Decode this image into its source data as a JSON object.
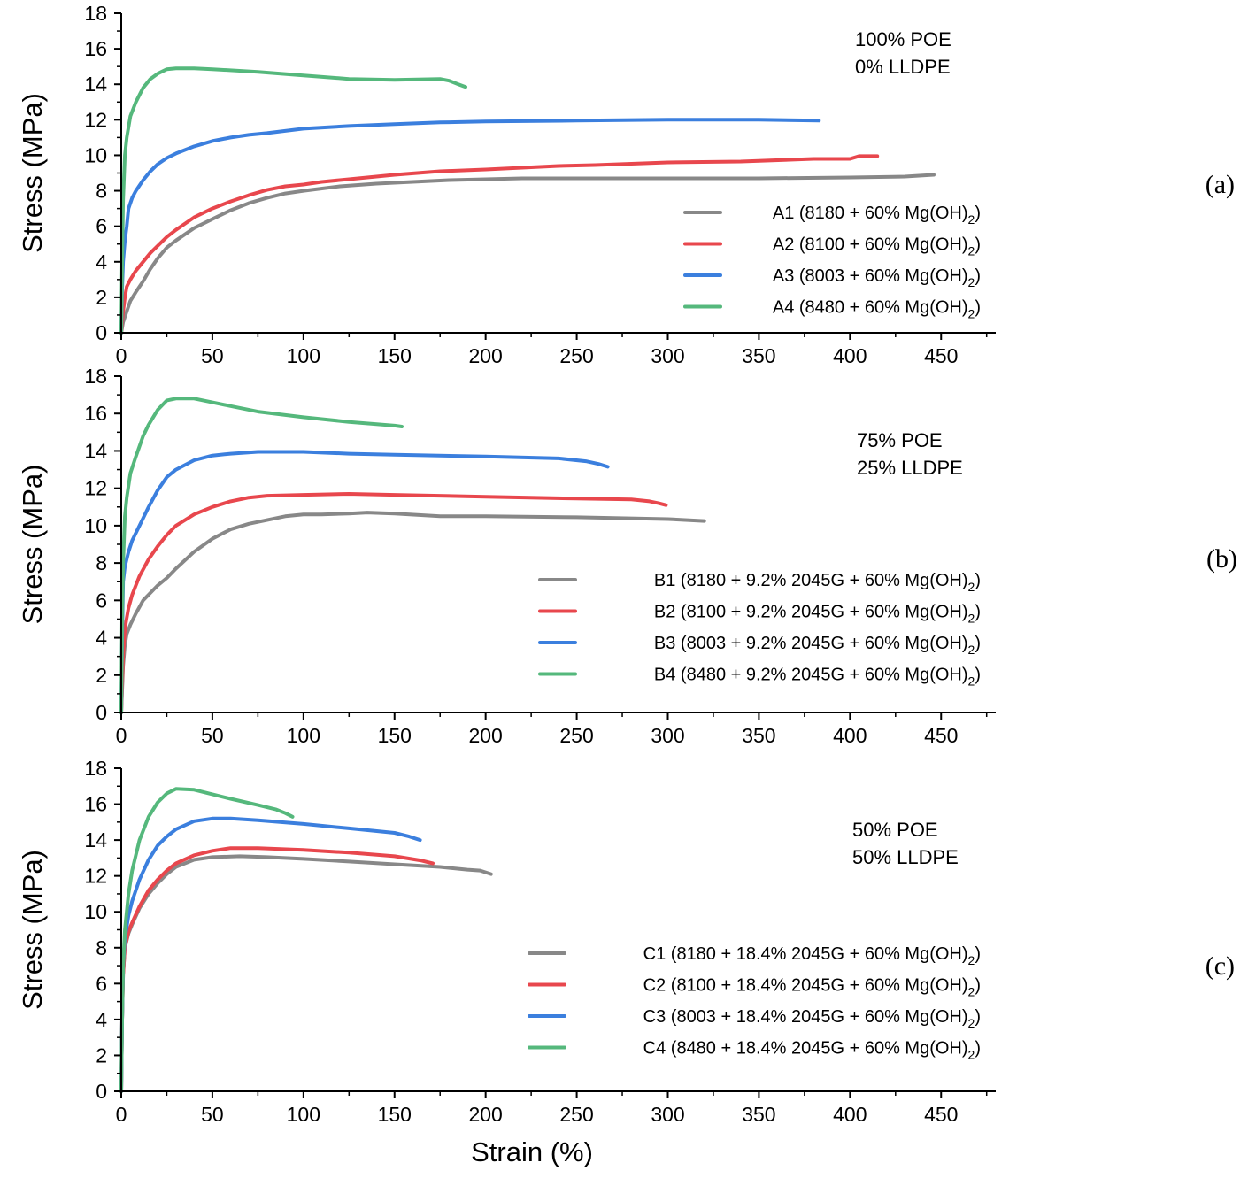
{
  "chart_data": [
    {
      "type": "line",
      "panel_label": "(a)",
      "ylabel": "Stress (MPa)",
      "xlabel": "",
      "xlim": [
        0,
        480
      ],
      "ylim": [
        0,
        18
      ],
      "xticks": [
        0,
        50,
        100,
        150,
        200,
        250,
        300,
        350,
        400,
        450
      ],
      "yticks": [
        0,
        2,
        4,
        6,
        8,
        10,
        12,
        14,
        16,
        18
      ],
      "annotation": [
        "100% POE",
        "0% LLDPE"
      ],
      "legend_position": "bottom-right",
      "series": [
        {
          "name": "A1 (8180 + 60% Mg(OH)",
          "name_sub": "2",
          "name_end": ")",
          "color": "#888888",
          "x": [
            0,
            1,
            3,
            5,
            8,
            12,
            16,
            20,
            25,
            30,
            40,
            50,
            60,
            70,
            80,
            90,
            100,
            120,
            140,
            160,
            180,
            200,
            220,
            250,
            300,
            350,
            400,
            430,
            446
          ],
          "y": [
            0,
            0.6,
            1.2,
            1.8,
            2.3,
            2.9,
            3.6,
            4.2,
            4.8,
            5.2,
            5.9,
            6.4,
            6.9,
            7.3,
            7.6,
            7.85,
            8.0,
            8.25,
            8.4,
            8.5,
            8.6,
            8.65,
            8.7,
            8.7,
            8.7,
            8.7,
            8.75,
            8.8,
            8.9
          ]
        },
        {
          "name": "A2 (8100 + 60% Mg(OH)",
          "name_sub": "2",
          "name_end": ")",
          "color": "#e8474d",
          "x": [
            0,
            1,
            2,
            3,
            5,
            8,
            12,
            16,
            20,
            25,
            30,
            40,
            50,
            60,
            70,
            80,
            90,
            100,
            110,
            125,
            150,
            175,
            200,
            240,
            260,
            300,
            340,
            380,
            400,
            405,
            415
          ],
          "y": [
            0,
            1.2,
            2.0,
            2.6,
            3.0,
            3.5,
            4.0,
            4.5,
            4.9,
            5.4,
            5.8,
            6.5,
            7.0,
            7.4,
            7.75,
            8.05,
            8.25,
            8.35,
            8.5,
            8.65,
            8.9,
            9.1,
            9.2,
            9.4,
            9.45,
            9.6,
            9.65,
            9.8,
            9.8,
            9.95,
            9.95
          ]
        },
        {
          "name": "A3 (8003 + 60% Mg(OH)",
          "name_sub": "2",
          "name_end": ")",
          "color": "#3b7fde",
          "x": [
            0,
            0.5,
            1,
            2,
            3,
            4,
            6,
            8,
            12,
            16,
            20,
            25,
            30,
            40,
            50,
            60,
            70,
            80,
            100,
            125,
            150,
            175,
            200,
            250,
            300,
            350,
            383
          ],
          "y": [
            0,
            2.5,
            4.0,
            5.2,
            6.0,
            7.0,
            7.6,
            8.0,
            8.6,
            9.1,
            9.5,
            9.85,
            10.1,
            10.5,
            10.8,
            11.0,
            11.15,
            11.25,
            11.5,
            11.65,
            11.75,
            11.85,
            11.9,
            11.95,
            12.0,
            12.0,
            11.95
          ]
        },
        {
          "name": "A4 (8480 + 60% Mg(OH)",
          "name_sub": "2",
          "name_end": ")",
          "color": "#55b87c",
          "x": [
            0,
            0.5,
            1,
            2,
            3,
            5,
            8,
            12,
            16,
            20,
            25,
            30,
            40,
            50,
            75,
            100,
            125,
            150,
            175,
            180,
            185,
            189
          ],
          "y": [
            0,
            4.0,
            7.5,
            10.0,
            11.0,
            12.2,
            13.0,
            13.8,
            14.3,
            14.6,
            14.85,
            14.9,
            14.9,
            14.85,
            14.7,
            14.5,
            14.3,
            14.25,
            14.3,
            14.2,
            14.0,
            13.85
          ]
        }
      ]
    },
    {
      "type": "line",
      "panel_label": "(b)",
      "ylabel": "Stress (MPa)",
      "xlabel": "",
      "xlim": [
        0,
        480
      ],
      "ylim": [
        0,
        18
      ],
      "xticks": [
        0,
        50,
        100,
        150,
        200,
        250,
        300,
        350,
        400,
        450
      ],
      "yticks": [
        0,
        2,
        4,
        6,
        8,
        10,
        12,
        14,
        16,
        18
      ],
      "annotation": [
        "75% POE",
        "25% LLDPE"
      ],
      "legend_position": "bottom-right",
      "series": [
        {
          "name": "B1 (8180 + 9.2% 2045G + 60% Mg(OH)",
          "name_sub": "2",
          "name_end": ")",
          "color": "#888888",
          "x": [
            0,
            1,
            2,
            3,
            5,
            8,
            12,
            16,
            20,
            25,
            30,
            40,
            50,
            60,
            70,
            80,
            90,
            100,
            110,
            125,
            135,
            150,
            175,
            200,
            250,
            300,
            320
          ],
          "y": [
            0,
            2.5,
            3.6,
            4.2,
            4.7,
            5.3,
            6.0,
            6.4,
            6.8,
            7.2,
            7.7,
            8.6,
            9.3,
            9.8,
            10.1,
            10.3,
            10.5,
            10.6,
            10.6,
            10.65,
            10.7,
            10.65,
            10.5,
            10.5,
            10.45,
            10.35,
            10.25
          ]
        },
        {
          "name": "B2 (8100 + 9.2% 2045G + 60% Mg(OH)",
          "name_sub": "2",
          "name_end": ")",
          "color": "#e8474d",
          "x": [
            0,
            1,
            2,
            4,
            6,
            10,
            15,
            20,
            25,
            30,
            40,
            50,
            60,
            70,
            80,
            100,
            125,
            150,
            200,
            250,
            280,
            290,
            295,
            299
          ],
          "y": [
            0,
            3.0,
            4.5,
            5.6,
            6.3,
            7.3,
            8.2,
            8.9,
            9.5,
            10.0,
            10.6,
            11.0,
            11.3,
            11.5,
            11.6,
            11.65,
            11.7,
            11.65,
            11.55,
            11.45,
            11.4,
            11.3,
            11.2,
            11.1
          ]
        },
        {
          "name": "B3 (8003 + 9.2% 2045G + 60% Mg(OH)",
          "name_sub": "2",
          "name_end": ")",
          "color": "#3b7fde",
          "x": [
            0,
            0.5,
            1,
            2,
            4,
            6,
            10,
            15,
            20,
            25,
            30,
            40,
            50,
            60,
            75,
            100,
            125,
            150,
            200,
            240,
            255,
            262,
            267
          ],
          "y": [
            0,
            4.0,
            7.0,
            7.8,
            8.6,
            9.2,
            10.0,
            11.0,
            11.9,
            12.6,
            13.0,
            13.5,
            13.75,
            13.85,
            13.95,
            13.95,
            13.85,
            13.8,
            13.7,
            13.6,
            13.45,
            13.3,
            13.15
          ]
        },
        {
          "name": "B4 (8480 + 9.2% 2045G + 60% Mg(OH)",
          "name_sub": "2",
          "name_end": ")",
          "color": "#55b87c",
          "x": [
            0,
            0.5,
            1,
            2,
            3,
            5,
            8,
            12,
            15,
            20,
            25,
            30,
            40,
            50,
            60,
            75,
            100,
            125,
            150,
            154
          ],
          "y": [
            0,
            5.0,
            8.0,
            10.5,
            11.5,
            12.8,
            13.7,
            14.8,
            15.4,
            16.2,
            16.7,
            16.8,
            16.8,
            16.6,
            16.4,
            16.1,
            15.8,
            15.55,
            15.35,
            15.3
          ]
        }
      ]
    },
    {
      "type": "line",
      "panel_label": "(c)",
      "ylabel": "Stress (MPa)",
      "xlabel": "Strain (%)",
      "xlim": [
        0,
        480
      ],
      "ylim": [
        0,
        18
      ],
      "xticks": [
        0,
        50,
        100,
        150,
        200,
        250,
        300,
        350,
        400,
        450
      ],
      "yticks": [
        0,
        2,
        4,
        6,
        8,
        10,
        12,
        14,
        16,
        18
      ],
      "annotation": [
        "50% POE",
        "50% LLDPE"
      ],
      "legend_position": "bottom-right",
      "series": [
        {
          "name": "C1 (8180 + 18.4% 2045G + 60% Mg(OH)",
          "name_sub": "2",
          "name_end": ")",
          "color": "#888888",
          "x": [
            0,
            0.5,
            1,
            2,
            4,
            6,
            10,
            15,
            20,
            25,
            30,
            40,
            50,
            65,
            80,
            100,
            125,
            150,
            175,
            190,
            197,
            200,
            203
          ],
          "y": [
            0,
            4.0,
            6.5,
            8.0,
            8.8,
            9.3,
            10.2,
            11.0,
            11.6,
            12.1,
            12.5,
            12.9,
            13.05,
            13.1,
            13.05,
            12.95,
            12.8,
            12.65,
            12.5,
            12.35,
            12.3,
            12.2,
            12.1
          ]
        },
        {
          "name": "C2 (8100 + 18.4% 2045G + 60% Mg(OH)",
          "name_sub": "2",
          "name_end": ")",
          "color": "#e8474d",
          "x": [
            0,
            0.5,
            1,
            2,
            4,
            6,
            10,
            15,
            20,
            25,
            30,
            40,
            50,
            60,
            75,
            100,
            125,
            150,
            165,
            171
          ],
          "y": [
            0,
            4.0,
            6.5,
            8.0,
            8.9,
            9.4,
            10.3,
            11.2,
            11.8,
            12.3,
            12.7,
            13.15,
            13.4,
            13.55,
            13.55,
            13.45,
            13.3,
            13.1,
            12.85,
            12.7
          ]
        },
        {
          "name": "C3 (8003 + 18.4% 2045G + 60% Mg(OH)",
          "name_sub": "2",
          "name_end": ")",
          "color": "#3b7fde",
          "x": [
            0,
            0.5,
            1,
            2,
            4,
            6,
            10,
            15,
            20,
            25,
            30,
            40,
            50,
            60,
            75,
            100,
            125,
            150,
            158,
            164
          ],
          "y": [
            0,
            4.0,
            7.0,
            8.5,
            9.8,
            10.6,
            11.8,
            12.9,
            13.7,
            14.2,
            14.6,
            15.05,
            15.2,
            15.2,
            15.1,
            14.9,
            14.65,
            14.4,
            14.2,
            14.0
          ]
        },
        {
          "name": "C4 (8480 + 18.4% 2045G + 60% Mg(OH)",
          "name_sub": "2",
          "name_end": ")",
          "color": "#55b87c",
          "x": [
            0,
            0.5,
            1,
            2,
            4,
            6,
            10,
            15,
            20,
            25,
            30,
            40,
            50,
            60,
            75,
            85,
            90,
            94
          ],
          "y": [
            0,
            4.0,
            7.0,
            9.0,
            11.0,
            12.3,
            14.0,
            15.3,
            16.1,
            16.6,
            16.85,
            16.8,
            16.55,
            16.3,
            15.95,
            15.7,
            15.5,
            15.3
          ]
        }
      ]
    }
  ]
}
